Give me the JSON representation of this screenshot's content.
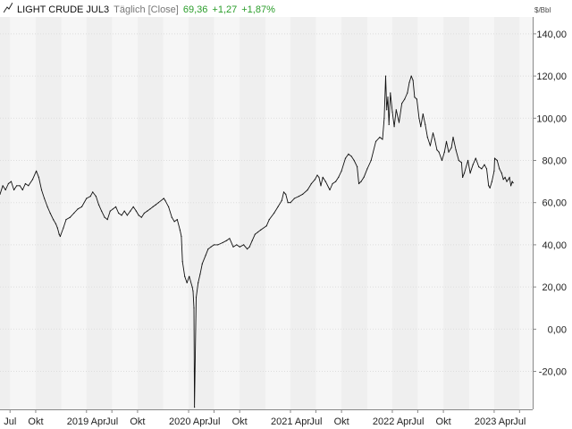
{
  "header": {
    "instrument": "LIGHT CRUDE JUL3",
    "frequency": "Täglich [Close]",
    "last": "69,36",
    "change": "+1,27",
    "change_pct": "+1,87%",
    "icon": "line-chart-icon",
    "positive_color": "#2a9d2a"
  },
  "chart_data": {
    "type": "line",
    "unit_label": "$/Bbl",
    "ylim": [
      -38,
      148
    ],
    "yticks": [
      -20,
      0,
      20,
      40,
      60,
      80,
      100,
      120,
      140
    ],
    "ytick_labels": [
      "-20,00",
      "0,00",
      "20,00",
      "40,00",
      "60,00",
      "80,00",
      "100,00",
      "120,00",
      "140,00"
    ],
    "xlim": [
      "2018-05-26",
      "2023-08-17"
    ],
    "xticks": [
      {
        "date": "2018-07-01",
        "label": "Jul"
      },
      {
        "date": "2018-10-01",
        "label": "Okt"
      },
      {
        "date": "2019-04-01",
        "label": "2019 Apr"
      },
      {
        "date": "2019-07-01",
        "label": "Jul"
      },
      {
        "date": "2019-10-01",
        "label": "Okt"
      },
      {
        "date": "2020-04-01",
        "label": "2020 Apr"
      },
      {
        "date": "2020-07-01",
        "label": "Jul"
      },
      {
        "date": "2020-10-01",
        "label": "Okt"
      },
      {
        "date": "2021-04-01",
        "label": "2021 Apr"
      },
      {
        "date": "2021-07-01",
        "label": "Jul"
      },
      {
        "date": "2021-10-01",
        "label": "Okt"
      },
      {
        "date": "2022-04-01",
        "label": "2022 Apr"
      },
      {
        "date": "2022-07-01",
        "label": "Jul"
      },
      {
        "date": "2022-10-01",
        "label": "Okt"
      },
      {
        "date": "2023-04-01",
        "label": "2023 Apr"
      },
      {
        "date": "2023-07-01",
        "label": "Jul"
      }
    ],
    "band_starts": [
      "2018-04-01",
      "2018-10-01",
      "2019-04-01",
      "2019-10-01",
      "2020-04-01",
      "2020-10-01",
      "2021-04-01",
      "2021-10-01",
      "2022-04-01",
      "2022-10-01",
      "2023-04-01"
    ],
    "band_length_months": 3,
    "grid": true,
    "colors": {
      "line": "#111111",
      "band_light": "#f6f6f6",
      "band_dark": "#efefef",
      "grid": "#dddddd",
      "axis": "#888888"
    },
    "series": [
      {
        "x": [
          "2018-05-26",
          "2018-06-05",
          "2018-06-15",
          "2018-06-25",
          "2018-07-05",
          "2018-07-15",
          "2018-07-25",
          "2018-08-05",
          "2018-08-15",
          "2018-08-25",
          "2018-09-05",
          "2018-09-20",
          "2018-10-03",
          "2018-10-12",
          "2018-10-22",
          "2018-11-01",
          "2018-11-12",
          "2018-11-22",
          "2018-12-03",
          "2018-12-12",
          "2018-12-18",
          "2018-12-24",
          "2018-12-28",
          "2019-01-08",
          "2019-01-18",
          "2019-02-01",
          "2019-02-15",
          "2019-03-01",
          "2019-03-15",
          "2019-04-01",
          "2019-04-15",
          "2019-04-23",
          "2019-05-05",
          "2019-05-15",
          "2019-05-25",
          "2019-06-05",
          "2019-06-15",
          "2019-06-25",
          "2019-07-05",
          "2019-07-15",
          "2019-07-25",
          "2019-08-05",
          "2019-08-15",
          "2019-08-25",
          "2019-09-05",
          "2019-09-16",
          "2019-09-26",
          "2019-10-05",
          "2019-10-15",
          "2019-10-25",
          "2019-11-05",
          "2019-11-15",
          "2019-11-25",
          "2019-12-05",
          "2019-12-15",
          "2020-01-03",
          "2020-01-08",
          "2020-01-20",
          "2020-02-01",
          "2020-02-10",
          "2020-02-20",
          "2020-03-01",
          "2020-03-06",
          "2020-03-10",
          "2020-03-18",
          "2020-03-26",
          "2020-04-03",
          "2020-04-14",
          "2020-04-17",
          "2020-04-20",
          "2020-04-22",
          "2020-04-28",
          "2020-05-05",
          "2020-05-12",
          "2020-05-20",
          "2020-06-01",
          "2020-06-10",
          "2020-06-20",
          "2020-07-01",
          "2020-07-15",
          "2020-08-01",
          "2020-08-15",
          "2020-08-26",
          "2020-09-08",
          "2020-09-20",
          "2020-10-01",
          "2020-10-15",
          "2020-10-28",
          "2020-11-05",
          "2020-11-15",
          "2020-11-25",
          "2020-12-05",
          "2020-12-15",
          "2021-01-05",
          "2021-01-15",
          "2021-02-01",
          "2021-02-15",
          "2021-03-01",
          "2021-03-08",
          "2021-03-15",
          "2021-03-23",
          "2021-04-01",
          "2021-04-15",
          "2021-05-01",
          "2021-05-15",
          "2021-06-01",
          "2021-06-15",
          "2021-06-28",
          "2021-07-06",
          "2021-07-12",
          "2021-07-19",
          "2021-07-26",
          "2021-08-05",
          "2021-08-20",
          "2021-08-30",
          "2021-09-10",
          "2021-09-20",
          "2021-10-01",
          "2021-10-15",
          "2021-10-26",
          "2021-11-05",
          "2021-11-15",
          "2021-11-26",
          "2021-12-02",
          "2021-12-10",
          "2021-12-20",
          "2022-01-01",
          "2022-01-15",
          "2022-02-01",
          "2022-02-15",
          "2022-02-25",
          "2022-03-03",
          "2022-03-08",
          "2022-03-12",
          "2022-03-16",
          "2022-03-20",
          "2022-03-25",
          "2022-04-01",
          "2022-04-08",
          "2022-04-15",
          "2022-04-25",
          "2022-05-05",
          "2022-05-15",
          "2022-05-25",
          "2022-06-01",
          "2022-06-08",
          "2022-06-14",
          "2022-06-20",
          "2022-06-28",
          "2022-07-06",
          "2022-07-12",
          "2022-07-20",
          "2022-07-28",
          "2022-08-05",
          "2022-08-15",
          "2022-08-25",
          "2022-08-31",
          "2022-09-08",
          "2022-09-15",
          "2022-09-26",
          "2022-10-05",
          "2022-10-12",
          "2022-10-20",
          "2022-10-30",
          "2022-11-05",
          "2022-11-15",
          "2022-11-25",
          "2022-12-05",
          "2022-12-09",
          "2022-12-15",
          "2022-12-28",
          "2023-01-05",
          "2023-01-15",
          "2023-01-25",
          "2023-02-05",
          "2023-02-15",
          "2023-02-25",
          "2023-03-05",
          "2023-03-12",
          "2023-03-17",
          "2023-03-24",
          "2023-04-01",
          "2023-04-03",
          "2023-04-12",
          "2023-04-20",
          "2023-04-28",
          "2023-05-04",
          "2023-05-10",
          "2023-05-16",
          "2023-05-22",
          "2023-05-26",
          "2023-05-31",
          "2023-06-05",
          "2023-06-08"
        ],
        "y": [
          64,
          68,
          66,
          69,
          70,
          66,
          68,
          68,
          66,
          69,
          68,
          71,
          75,
          72,
          66,
          62,
          58,
          55,
          52,
          50,
          48,
          45,
          44,
          48,
          52,
          53,
          55,
          57,
          58,
          62,
          63,
          65,
          63,
          59,
          56,
          53,
          52,
          56,
          57,
          58,
          55,
          54,
          56,
          54,
          56,
          58,
          56,
          54,
          53,
          55,
          56,
          57,
          58,
          59,
          60,
          62,
          61,
          58,
          53,
          51,
          52,
          47,
          44,
          32,
          25,
          22,
          25,
          20,
          18,
          10,
          -37,
          15,
          22,
          26,
          31,
          35,
          38,
          39,
          40,
          40,
          41,
          42,
          43,
          39,
          40,
          39,
          40,
          38,
          39,
          42,
          45,
          46,
          47,
          49,
          52,
          55,
          58,
          61,
          65,
          64,
          60,
          60,
          62,
          63,
          64,
          66,
          69,
          71,
          73,
          72,
          68,
          72,
          70,
          66,
          69,
          70,
          72,
          75,
          81,
          83,
          82,
          80,
          77,
          69,
          70,
          72,
          76,
          80,
          89,
          91,
          90,
          100,
          120,
          104,
          110,
          97,
          112,
          103,
          96,
          104,
          98,
          107,
          109,
          112,
          117,
          120,
          118,
          110,
          109,
          100,
          96,
          102,
          97,
          91,
          87,
          93,
          90,
          85,
          84,
          80,
          84,
          89,
          84,
          86,
          91,
          85,
          80,
          79,
          72,
          74,
          80,
          74,
          78,
          81,
          77,
          76,
          78,
          76,
          68,
          67,
          70,
          75,
          81,
          80,
          76,
          74,
          71,
          72,
          70,
          71,
          72,
          68,
          70,
          69.36
        ]
      }
    ]
  }
}
